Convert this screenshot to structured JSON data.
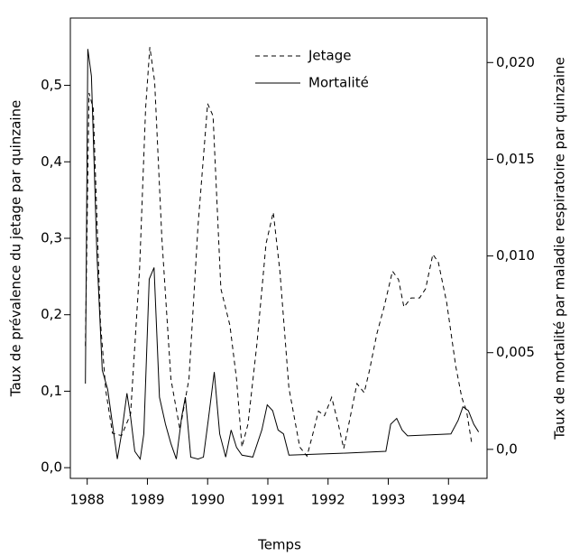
{
  "chart_data": {
    "type": "line",
    "xlabel": "Temps",
    "ylabel": "Taux de prévalence du jetage par quinzaine",
    "y2label": "Taux de mortalité par maladie respiratoire par quinzaine",
    "xlim": [
      1987.72,
      1994.64
    ],
    "xticks": [
      1988,
      1989,
      1990,
      1991,
      1992,
      1993,
      1994
    ],
    "ylim": [
      -0.014,
      0.588
    ],
    "yticks": [
      {
        "value": 0,
        "label": "0,0"
      },
      {
        "value": 0.1,
        "label": "0,1"
      },
      {
        "value": 0.2,
        "label": "0,2"
      },
      {
        "value": 0.3,
        "label": "0,3"
      },
      {
        "value": 0.4,
        "label": "0,4"
      },
      {
        "value": 0.5,
        "label": "0,5"
      }
    ],
    "y2lim": [
      -0.0015,
      0.0223
    ],
    "y2ticks": [
      {
        "value": 0,
        "label": "0,0"
      },
      {
        "value": 0.005,
        "label": "0,005"
      },
      {
        "value": 0.01,
        "label": "0,010"
      },
      {
        "value": 0.015,
        "label": "0,015"
      },
      {
        "value": 0.02,
        "label": "0,020"
      }
    ],
    "legend": "top-center",
    "series": [
      {
        "name": "Jetage",
        "color": "#000000",
        "dash": "dashed",
        "x": [
          1987.97,
          1988.03,
          1988.1,
          1988.22,
          1988.31,
          1988.42,
          1988.57,
          1988.72,
          1988.87,
          1988.97,
          1989.04,
          1989.12,
          1989.24,
          1989.39,
          1989.54,
          1989.69,
          1989.84,
          1990,
          1990.09,
          1990.22,
          1990.37,
          1990.48,
          1990.57,
          1990.67,
          1990.82,
          1990.97,
          1991.09,
          1991.2,
          1991.35,
          1991.53,
          1991.65,
          1991.75,
          1991.84,
          1991.94,
          1992.06,
          1992.17,
          1992.26,
          1992.36,
          1992.48,
          1992.6,
          1992.69,
          1992.81,
          1992.93,
          1993.07,
          1993.17,
          1993.26,
          1993.38,
          1993.52,
          1993.62,
          1993.74,
          1993.83,
          1993.97,
          1994.12,
          1994.22,
          1994.3,
          1994.39
        ],
        "values": [
          0.159,
          0.49,
          0.47,
          0.19,
          0.1,
          0.045,
          0.042,
          0.07,
          0.26,
          0.47,
          0.55,
          0.505,
          0.3,
          0.116,
          0.05,
          0.116,
          0.316,
          0.476,
          0.46,
          0.234,
          0.186,
          0.116,
          0.027,
          0.057,
          0.163,
          0.293,
          0.334,
          0.257,
          0.104,
          0.027,
          0.015,
          0.045,
          0.074,
          0.068,
          0.092,
          0.057,
          0.025,
          0.063,
          0.11,
          0.098,
          0.128,
          0.175,
          0.21,
          0.257,
          0.246,
          0.21,
          0.222,
          0.222,
          0.234,
          0.279,
          0.269,
          0.216,
          0.133,
          0.092,
          0.074,
          0.03
        ]
      },
      {
        "name": "Mortalité",
        "color": "#000000",
        "dash": "solid",
        "axis": "y2",
        "x": [
          1987.97,
          1988.01,
          1988.07,
          1988.16,
          1988.25,
          1988.34,
          1988.42,
          1988.5,
          1988.57,
          1988.66,
          1988.72,
          1988.79,
          1988.88,
          1988.94,
          1989.03,
          1989.11,
          1989.2,
          1989.3,
          1989.39,
          1989.48,
          1989.57,
          1989.63,
          1989.72,
          1989.84,
          1989.93,
          1990.01,
          1990.11,
          1990.2,
          1990.3,
          1990.39,
          1990.48,
          1990.57,
          1990.75,
          1990.9,
          1990.99,
          1991.08,
          1991.17,
          1991.26,
          1991.35,
          1992.24,
          1992.96,
          1993.04,
          1993.14,
          1993.23,
          1993.32,
          1994.04,
          1994.16,
          1994.24,
          1994.33,
          1994.42,
          1994.5
        ],
        "values": [
          0.0034,
          0.0207,
          0.0193,
          0.0102,
          0.0041,
          0.0031,
          0.0013,
          -0.0005,
          0.0008,
          0.0029,
          0.0017,
          -0.0001,
          -0.0005,
          0.0008,
          0.0088,
          0.0094,
          0.0027,
          0.0013,
          0.0003,
          -0.0005,
          0.0017,
          0.0027,
          -0.0004,
          -0.0005,
          -0.0004,
          0.0015,
          0.004,
          0.0008,
          -0.0004,
          0.001,
          0.0001,
          -0.0003,
          -0.0004,
          0.001,
          0.0023,
          0.002,
          0.001,
          0.0008,
          -0.0003,
          -0.0002,
          -0.0001,
          0.0013,
          0.0016,
          0.001,
          0.0007,
          0.0008,
          0.0015,
          0.0022,
          0.002,
          0.0013,
          0.0009
        ]
      }
    ]
  }
}
